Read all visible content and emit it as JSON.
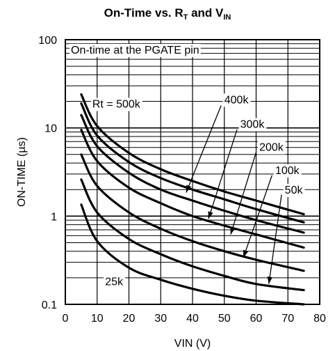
{
  "chart_data": {
    "type": "line",
    "title": {
      "main": "On-Time vs. R",
      "sub1": "T",
      "mid": " and V",
      "sub2": "IN"
    },
    "xlabel": "VIN (V)",
    "ylabel": "ON-TIME (µs)",
    "xlim": [
      0,
      80
    ],
    "ylim": [
      0.1,
      100
    ],
    "yscale": "log",
    "grid": true,
    "x_ticks": [
      "0",
      "10",
      "20",
      "30",
      "40",
      "50",
      "60",
      "70",
      "80"
    ],
    "y_ticks": [
      "0.1",
      "1",
      "10",
      "100"
    ],
    "annotation": "On-time at the PGATE pin",
    "series": [
      {
        "name": "Rt = 500k",
        "x": [
          5,
          10,
          20,
          30,
          40,
          50,
          60,
          75
        ],
        "y": [
          24,
          10.5,
          5.2,
          3.4,
          2.5,
          1.9,
          1.5,
          1.05
        ]
      },
      {
        "name": "400k",
        "x": [
          5,
          10,
          20,
          30,
          40,
          50,
          60,
          75
        ],
        "y": [
          19,
          8.2,
          4.1,
          2.7,
          2.0,
          1.55,
          1.2,
          0.85
        ]
      },
      {
        "name": "300k",
        "x": [
          5,
          10,
          20,
          30,
          40,
          50,
          60,
          75
        ],
        "y": [
          14,
          6.2,
          3.1,
          2.0,
          1.5,
          1.15,
          0.9,
          0.65
        ]
      },
      {
        "name": "200k",
        "x": [
          5,
          10,
          20,
          30,
          40,
          50,
          60,
          75
        ],
        "y": [
          9.5,
          4.2,
          2.1,
          1.4,
          1.0,
          0.78,
          0.62,
          0.44
        ]
      },
      {
        "name": "100k",
        "x": [
          5,
          10,
          20,
          30,
          40,
          50,
          60,
          75
        ],
        "y": [
          5.0,
          2.2,
          1.1,
          0.72,
          0.52,
          0.4,
          0.32,
          0.24
        ]
      },
      {
        "name": "50k",
        "x": [
          5,
          10,
          20,
          30,
          40,
          50,
          60,
          75
        ],
        "y": [
          2.6,
          1.1,
          0.55,
          0.37,
          0.27,
          0.21,
          0.17,
          0.145
        ]
      },
      {
        "name": "25k",
        "x": [
          5,
          10,
          20,
          30,
          40,
          50,
          60,
          75
        ],
        "y": [
          1.35,
          0.52,
          0.26,
          0.19,
          0.15,
          0.125,
          0.11,
          0.1
        ]
      }
    ],
    "labels": [
      {
        "text": "Rt = 500k",
        "x": 8.5,
        "y": 17
      },
      {
        "text": "400k",
        "x": 50,
        "y": 19
      },
      {
        "text": "300k",
        "x": 55,
        "y": 10
      },
      {
        "text": "200k",
        "x": 61,
        "y": 5.5
      },
      {
        "text": "100k",
        "x": 66,
        "y": 3.0
      },
      {
        "text": "50k",
        "x": 69,
        "y": 1.8
      },
      {
        "text": "25k",
        "x": 12.5,
        "y": 0.165
      }
    ],
    "arrows": [
      {
        "series": "400k",
        "from": [
          49,
          18
        ],
        "to": [
          38,
          1.85
        ]
      },
      {
        "series": "300k",
        "from": [
          54,
          9.6
        ],
        "to": [
          45,
          0.93
        ]
      },
      {
        "series": "200k",
        "from": [
          60,
          5.3
        ],
        "to": [
          52,
          0.62
        ]
      },
      {
        "series": "100k",
        "from": [
          65,
          2.9
        ],
        "to": [
          56,
          0.34
        ]
      },
      {
        "series": "50k",
        "from": [
          68,
          1.75
        ],
        "to": [
          64,
          0.17
        ]
      }
    ]
  }
}
